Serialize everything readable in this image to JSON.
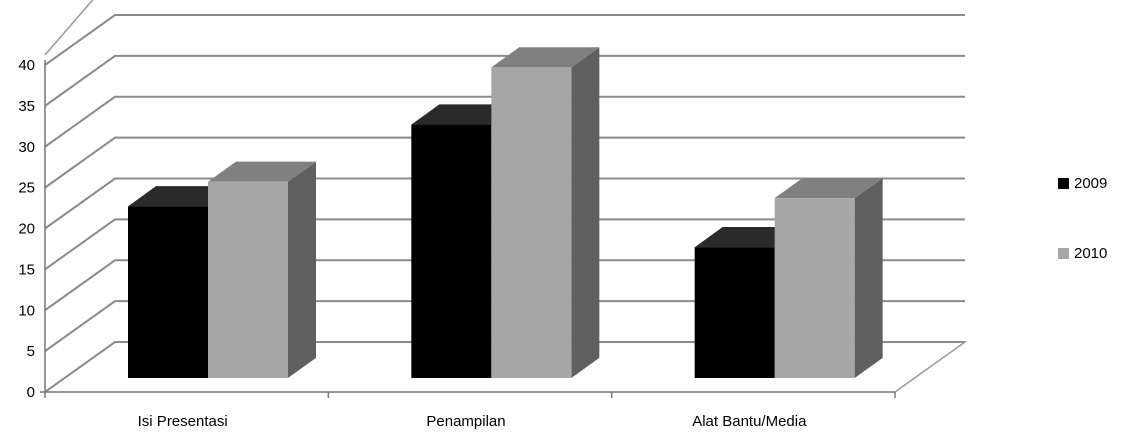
{
  "chart_data": {
    "type": "bar",
    "categories": [
      "Isi Presentasi",
      "Penampilan",
      "Alat Bantu/Media"
    ],
    "series": [
      {
        "name": "2009",
        "values": [
          21,
          31,
          16
        ],
        "color": "#000000"
      },
      {
        "name": "2010",
        "values": [
          24,
          38,
          22
        ],
        "color": "#a6a6a6"
      }
    ],
    "y_ticks": [
      "0",
      "5",
      "10",
      "15",
      "20",
      "25",
      "30",
      "35",
      "40"
    ],
    "ylim": [
      0,
      40
    ],
    "grid": true,
    "legend_position": "right",
    "style": "3d-clustered-column"
  }
}
